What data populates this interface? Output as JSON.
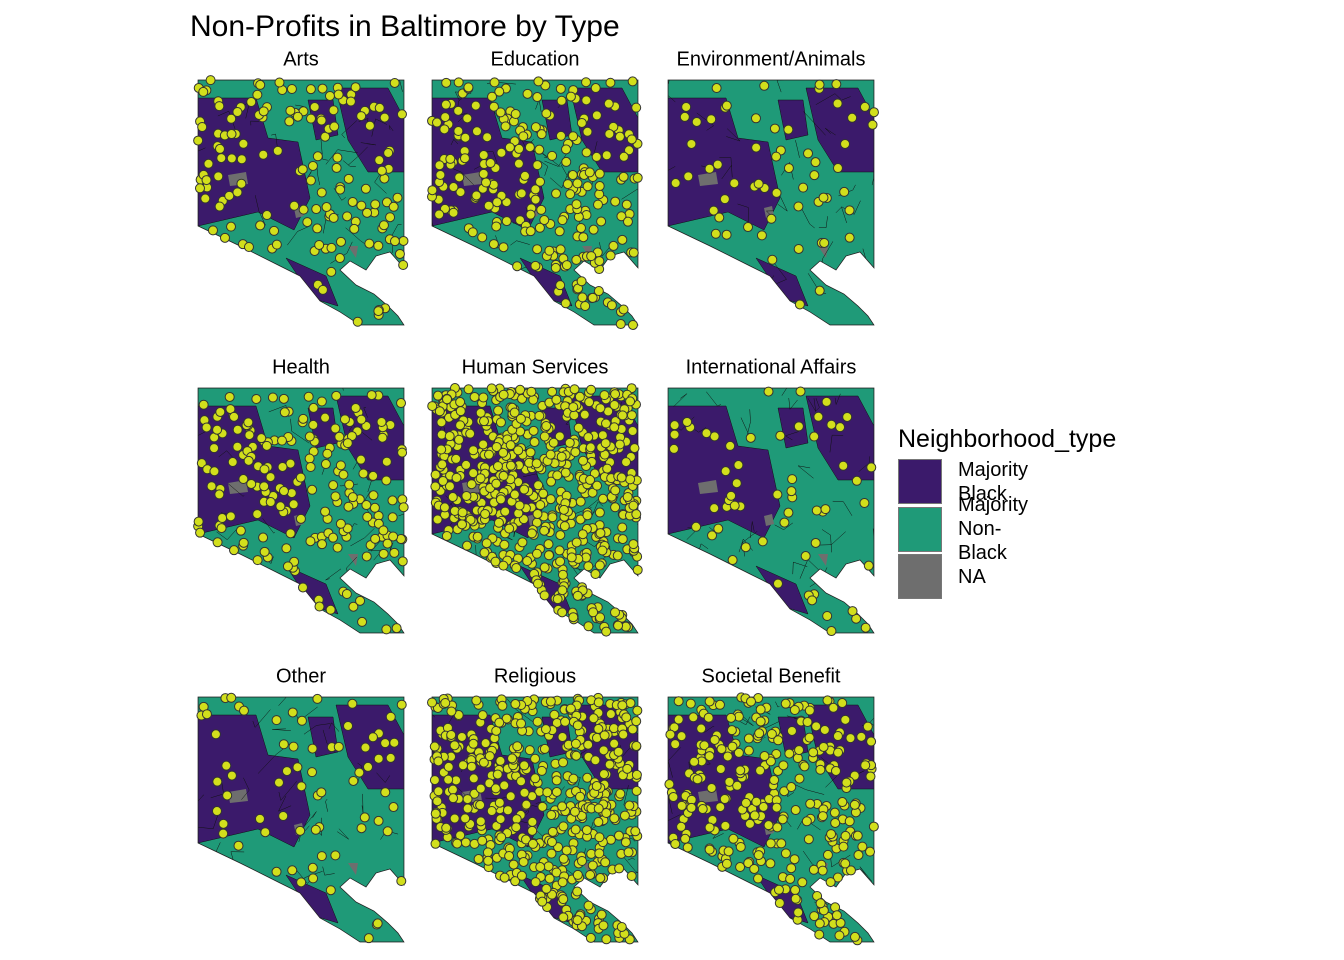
{
  "title": "Non-Profits in Baltimore by Type",
  "panels": [
    "Arts",
    "Education",
    "Environment/Animals",
    "Health",
    "Human Services",
    "International Affairs",
    "Other",
    "Religious",
    "Societal Benefit"
  ],
  "legend": {
    "title": "Neighborhood_type",
    "items": [
      {
        "label": "Majority Black",
        "color": "#3b1a6b"
      },
      {
        "label": "Majority Non-Black",
        "color": "#1f9a78"
      },
      {
        "label": "NA",
        "color": "#6e6e6e"
      }
    ]
  }
}
